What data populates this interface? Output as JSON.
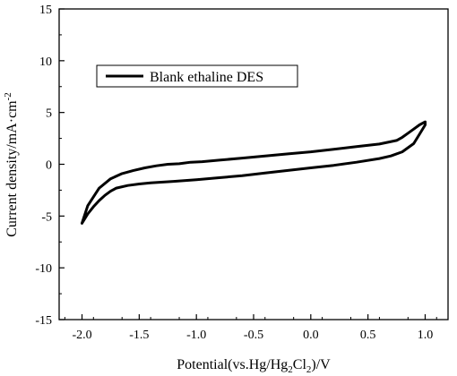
{
  "chart_data": {
    "type": "line",
    "xlabel": "Potential(vs.Hg/Hg",
    "xlabel_sub1": "2",
    "xlabel_mid": "Cl",
    "xlabel_sub2": "2",
    "xlabel_tail": ")/V",
    "ylabel": "Current density/mA·cm",
    "ylabel_sup": "-2",
    "xlim": [
      -2.2,
      1.2
    ],
    "ylim": [
      -15,
      15
    ],
    "x_ticks": [
      -2.0,
      -1.5,
      -1.0,
      -0.5,
      0.0,
      0.5,
      1.0
    ],
    "x_tick_labels": [
      "-2.0",
      "-1.5",
      "-1.0",
      "-0.5",
      "0.0",
      "0.5",
      "1.0"
    ],
    "y_ticks": [
      -15,
      -10,
      -5,
      0,
      5,
      10,
      15
    ],
    "y_tick_labels": [
      "-15",
      "-10",
      "-5",
      "0",
      "5",
      "10",
      "15"
    ],
    "grid": false,
    "legend_position": "top-left",
    "series": [
      {
        "name": "Blank ethaline DES",
        "color": "#000000",
        "points": [
          [
            -2.0,
            -5.7
          ],
          [
            -1.95,
            -4.8
          ],
          [
            -1.9,
            -4.1
          ],
          [
            -1.85,
            -3.5
          ],
          [
            -1.8,
            -3.0
          ],
          [
            -1.75,
            -2.6
          ],
          [
            -1.7,
            -2.3
          ],
          [
            -1.6,
            -2.05
          ],
          [
            -1.5,
            -1.9
          ],
          [
            -1.4,
            -1.8
          ],
          [
            -1.2,
            -1.65
          ],
          [
            -1.0,
            -1.5
          ],
          [
            -0.8,
            -1.3
          ],
          [
            -0.6,
            -1.1
          ],
          [
            -0.4,
            -0.85
          ],
          [
            -0.2,
            -0.6
          ],
          [
            0.0,
            -0.35
          ],
          [
            0.2,
            -0.1
          ],
          [
            0.4,
            0.2
          ],
          [
            0.6,
            0.55
          ],
          [
            0.7,
            0.8
          ],
          [
            0.8,
            1.2
          ],
          [
            0.9,
            2.0
          ],
          [
            0.95,
            2.9
          ],
          [
            1.0,
            3.8
          ],
          [
            1.0,
            4.1
          ],
          [
            0.95,
            3.8
          ],
          [
            0.9,
            3.4
          ],
          [
            0.85,
            3.0
          ],
          [
            0.8,
            2.6
          ],
          [
            0.75,
            2.3
          ],
          [
            0.6,
            1.95
          ],
          [
            0.4,
            1.7
          ],
          [
            0.2,
            1.45
          ],
          [
            0.0,
            1.2
          ],
          [
            -0.2,
            1.0
          ],
          [
            -0.4,
            0.8
          ],
          [
            -0.6,
            0.6
          ],
          [
            -0.8,
            0.4
          ],
          [
            -0.95,
            0.25
          ],
          [
            -1.05,
            0.2
          ],
          [
            -1.15,
            0.05
          ],
          [
            -1.25,
            0.0
          ],
          [
            -1.35,
            -0.15
          ],
          [
            -1.45,
            -0.35
          ],
          [
            -1.55,
            -0.6
          ],
          [
            -1.65,
            -0.9
          ],
          [
            -1.75,
            -1.4
          ],
          [
            -1.85,
            -2.3
          ],
          [
            -1.95,
            -4.0
          ],
          [
            -2.0,
            -5.7
          ]
        ]
      }
    ]
  }
}
